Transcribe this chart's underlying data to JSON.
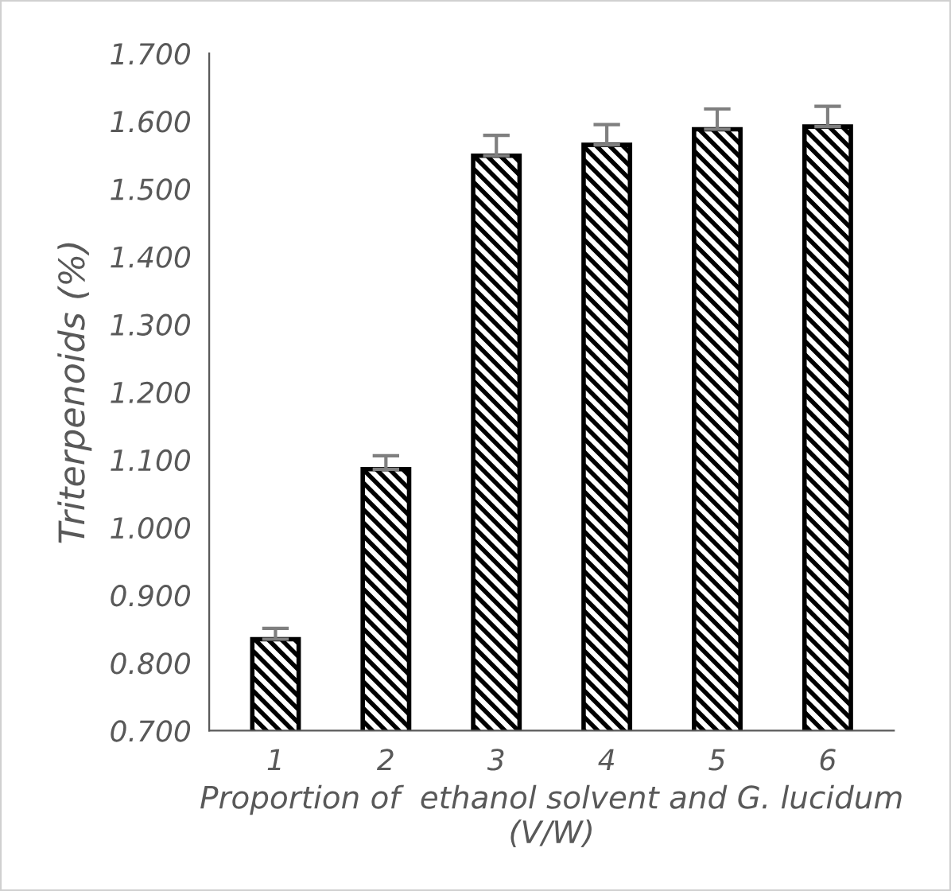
{
  "chart_data": {
    "type": "bar",
    "xlabel": "Proportion of  ethanol solvent and G. lucidum (V/W)",
    "ylabel": "Triterpenoids (%)",
    "categories": [
      "1",
      "2",
      "3",
      "4",
      "5",
      "6"
    ],
    "values": [
      0.835,
      1.086,
      1.549,
      1.565,
      1.588,
      1.592
    ],
    "errors": [
      0.016,
      0.02,
      0.03,
      0.03,
      0.03,
      0.03
    ],
    "color": "#000000",
    "ylim": [
      0.7,
      1.7
    ],
    "yticks": [
      {
        "value": 0.7,
        "label": "0.700"
      },
      {
        "value": 0.8,
        "label": "0.800"
      },
      {
        "value": 0.9,
        "label": "0.900"
      },
      {
        "value": 1.0,
        "label": "1.000"
      },
      {
        "value": 1.1,
        "label": "1.100"
      },
      {
        "value": 1.2,
        "label": "1.200"
      },
      {
        "value": 1.3,
        "label": "1.300"
      },
      {
        "value": 1.4,
        "label": "1.400"
      },
      {
        "value": 1.5,
        "label": "1.500"
      },
      {
        "value": 1.6,
        "label": "1.600"
      },
      {
        "value": 1.7,
        "label": "1.700"
      }
    ],
    "grid": false,
    "legend": false
  }
}
